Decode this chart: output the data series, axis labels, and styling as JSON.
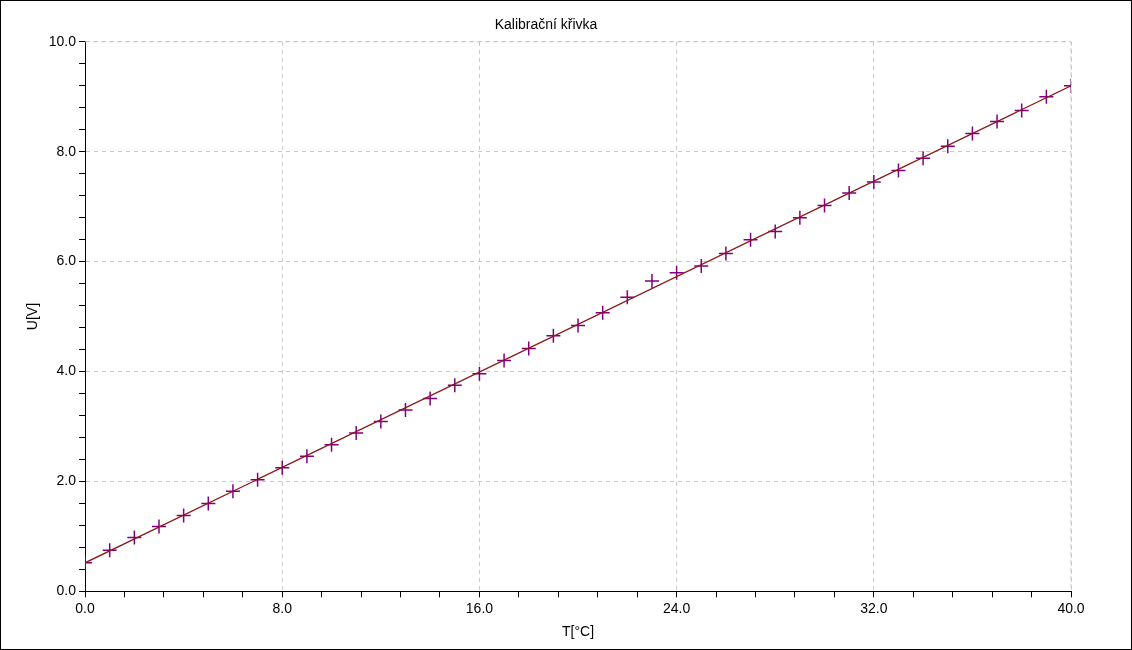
{
  "chart_data": {
    "type": "scatter",
    "title": "Kalibrační křivka",
    "xlabel": "T[°C]",
    "ylabel": "U[V]",
    "xlim": [
      0,
      40
    ],
    "ylim": [
      0,
      10
    ],
    "xticks": [
      {
        "value": 0,
        "label": "0.0"
      },
      {
        "value": 1.6,
        "label": null
      },
      {
        "value": 3.2,
        "label": null
      },
      {
        "value": 4.8,
        "label": null
      },
      {
        "value": 6.4,
        "label": null
      },
      {
        "value": 8,
        "label": "8.0"
      },
      {
        "value": 9.6,
        "label": null
      },
      {
        "value": 11.2,
        "label": null
      },
      {
        "value": 12.8,
        "label": null
      },
      {
        "value": 14.4,
        "label": null
      },
      {
        "value": 16,
        "label": "16.0"
      },
      {
        "value": 17.6,
        "label": null
      },
      {
        "value": 19.2,
        "label": null
      },
      {
        "value": 20.8,
        "label": null
      },
      {
        "value": 22.4,
        "label": null
      },
      {
        "value": 24,
        "label": "24.0"
      },
      {
        "value": 25.6,
        "label": null
      },
      {
        "value": 27.2,
        "label": null
      },
      {
        "value": 28.8,
        "label": null
      },
      {
        "value": 30.4,
        "label": null
      },
      {
        "value": 32,
        "label": "32.0"
      },
      {
        "value": 33.6,
        "label": null
      },
      {
        "value": 35.2,
        "label": null
      },
      {
        "value": 36.8,
        "label": null
      },
      {
        "value": 38.4,
        "label": null
      },
      {
        "value": 40,
        "label": "40.0"
      }
    ],
    "yticks": [
      {
        "value": 0,
        "label": "0.0"
      },
      {
        "value": 0.4,
        "label": null
      },
      {
        "value": 0.8,
        "label": null
      },
      {
        "value": 1.2,
        "label": null
      },
      {
        "value": 1.6,
        "label": null
      },
      {
        "value": 2,
        "label": "2.0"
      },
      {
        "value": 2.4,
        "label": null
      },
      {
        "value": 2.8,
        "label": null
      },
      {
        "value": 3.2,
        "label": null
      },
      {
        "value": 3.6,
        "label": null
      },
      {
        "value": 4,
        "label": "4.0"
      },
      {
        "value": 4.4,
        "label": null
      },
      {
        "value": 4.8,
        "label": null
      },
      {
        "value": 5.2,
        "label": null
      },
      {
        "value": 5.6,
        "label": null
      },
      {
        "value": 6,
        "label": "6.0"
      },
      {
        "value": 6.4,
        "label": null
      },
      {
        "value": 6.8,
        "label": null
      },
      {
        "value": 7.2,
        "label": null
      },
      {
        "value": 7.6,
        "label": null
      },
      {
        "value": 8,
        "label": "8.0"
      },
      {
        "value": 8.4,
        "label": null
      },
      {
        "value": 8.8,
        "label": null
      },
      {
        "value": 9.2,
        "label": null
      },
      {
        "value": 9.6,
        "label": null
      },
      {
        "value": 10,
        "label": "10.0"
      }
    ],
    "grid": true,
    "legend": false,
    "marker": "cross",
    "x": [
      0,
      1,
      2,
      3,
      4,
      5,
      6,
      7,
      8,
      9,
      10,
      11,
      12,
      13,
      14,
      15,
      16,
      17,
      18,
      19,
      20,
      21,
      22,
      23,
      24,
      25,
      26,
      27,
      28,
      29,
      30,
      31,
      32,
      33,
      34,
      35,
      36,
      37,
      38,
      39,
      40
    ],
    "series": [
      {
        "type": "line",
        "color": "#8b1a1a",
        "x": [
          0,
          40
        ],
        "values": [
          0.52,
          9.2
        ],
        "marker": "none",
        "line_style": "solid"
      },
      {
        "color": "#800080",
        "values": [
          0.52,
          0.75,
          0.98,
          1.18,
          1.38,
          1.6,
          1.82,
          2.03,
          2.25,
          2.46,
          2.67,
          2.88,
          3.09,
          3.3,
          3.51,
          3.75,
          3.96,
          4.2,
          4.42,
          4.65,
          4.84,
          5.07,
          5.35,
          5.65,
          5.8,
          5.92,
          6.15,
          6.4,
          6.55,
          6.8,
          7.02,
          7.25,
          7.45,
          7.66,
          7.88,
          8.1,
          8.33,
          8.55,
          8.75,
          9.0,
          9.2
        ]
      }
    ]
  }
}
